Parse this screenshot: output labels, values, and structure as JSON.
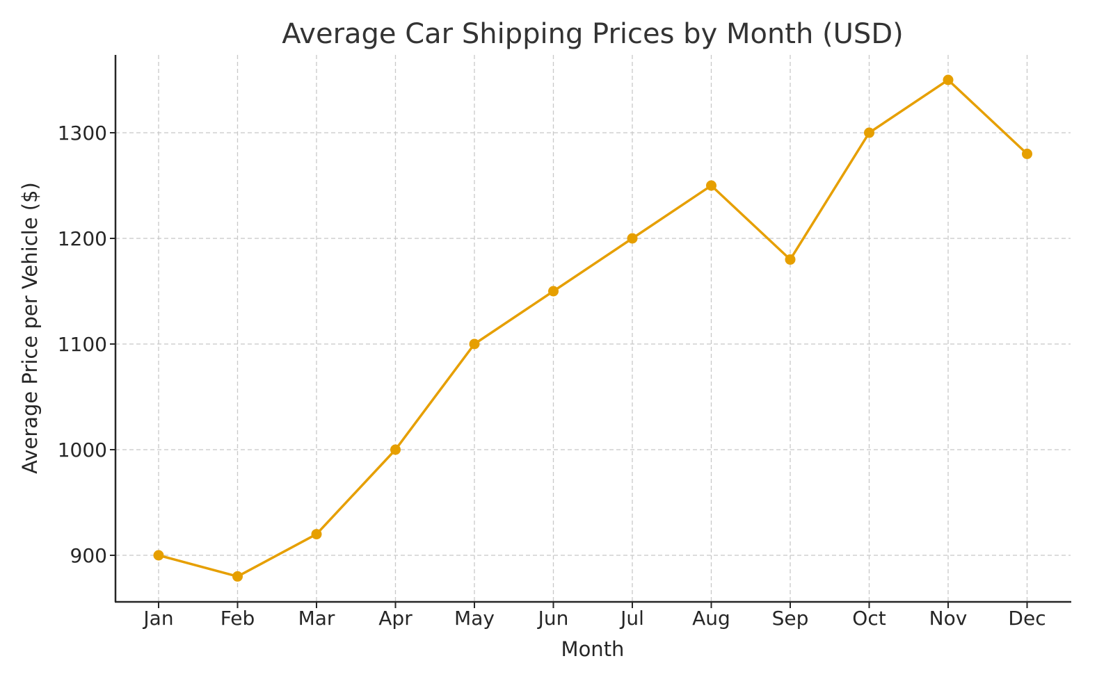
{
  "chart_data": {
    "type": "line",
    "title": "Average Car Shipping Prices by Month (USD)",
    "xlabel": "Month",
    "ylabel": "Average Price per Vehicle ($)",
    "categories": [
      "Jan",
      "Feb",
      "Mar",
      "Apr",
      "May",
      "Jun",
      "Jul",
      "Aug",
      "Sep",
      "Oct",
      "Nov",
      "Dec"
    ],
    "series": [
      {
        "name": "Average Price",
        "color": "#E69F00",
        "marker": "circle",
        "values": [
          900,
          880,
          920,
          1000,
          1100,
          1150,
          1200,
          1250,
          1180,
          1300,
          1350,
          1280
        ]
      }
    ],
    "yticks": [
      900,
      1000,
      1100,
      1200,
      1300
    ],
    "ylim": [
      857,
      1374
    ],
    "grid": true,
    "grid_style": "dashed",
    "legend": null
  }
}
